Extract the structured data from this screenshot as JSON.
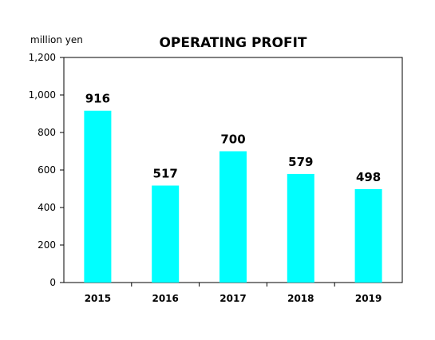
{
  "chart_data": {
    "type": "bar",
    "title": "OPERATING PROFIT",
    "unit_label": "million yen",
    "xlabel": "",
    "ylabel": "",
    "categories": [
      "2015",
      "2016",
      "2017",
      "2018",
      "2019"
    ],
    "values": [
      916,
      517,
      700,
      579,
      498
    ],
    "data_labels": [
      "916",
      "517",
      "700",
      "579",
      "498"
    ],
    "ylim": [
      0,
      1200
    ],
    "yticks": [
      0,
      200,
      400,
      600,
      800,
      1000,
      1200
    ],
    "ytick_labels": [
      "0",
      "200",
      "400",
      "600",
      "800",
      "1,000",
      "1,200"
    ],
    "grid": false,
    "legend": "none",
    "bar_color": "#00FFFF",
    "axis_color": "#000000"
  }
}
